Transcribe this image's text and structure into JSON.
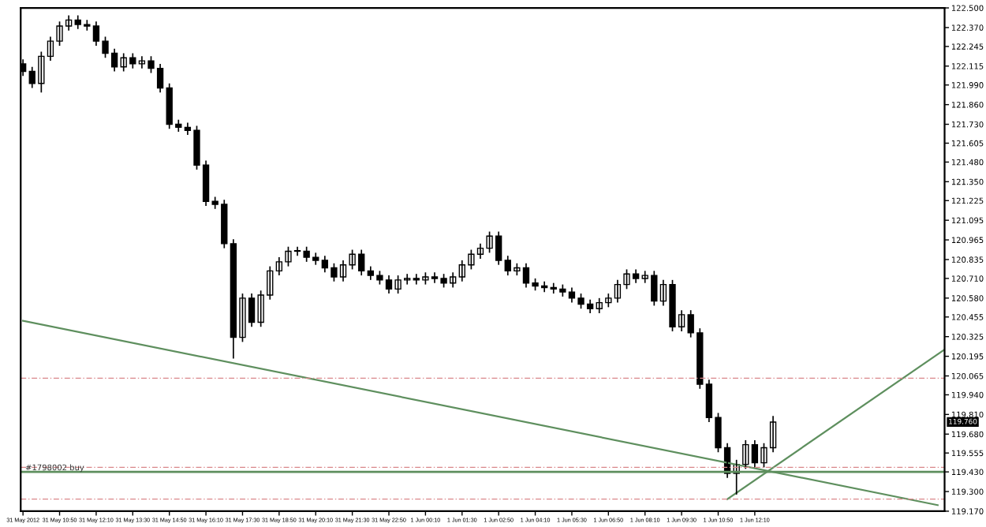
{
  "chart_data": {
    "type": "candlestick",
    "color": "#000000",
    "x": [
      "2012-05-31T09:30",
      "2012-05-31T09:50",
      "2012-05-31T10:10",
      "2012-05-31T10:30",
      "2012-05-31T10:50",
      "2012-05-31T11:10",
      "2012-05-31T11:30",
      "2012-05-31T11:50",
      "2012-05-31T12:10",
      "2012-05-31T12:30",
      "2012-05-31T12:50",
      "2012-05-31T13:10",
      "2012-05-31T13:30",
      "2012-05-31T13:50",
      "2012-05-31T14:10",
      "2012-05-31T14:30",
      "2012-05-31T14:50",
      "2012-05-31T15:10",
      "2012-05-31T15:30",
      "2012-05-31T15:50",
      "2012-05-31T16:10",
      "2012-05-31T16:30",
      "2012-05-31T16:50",
      "2012-05-31T17:10",
      "2012-05-31T17:30",
      "2012-05-31T17:50",
      "2012-05-31T18:10",
      "2012-05-31T18:30",
      "2012-05-31T18:50",
      "2012-05-31T19:10",
      "2012-05-31T19:30",
      "2012-05-31T19:50",
      "2012-05-31T20:10",
      "2012-05-31T20:30",
      "2012-05-31T20:50",
      "2012-05-31T21:10",
      "2012-05-31T21:30",
      "2012-05-31T21:50",
      "2012-05-31T22:10",
      "2012-05-31T22:30",
      "2012-05-31T22:50",
      "2012-05-31T23:10",
      "2012-05-31T23:30",
      "2012-05-31T23:50",
      "2012-06-01T00:10",
      "2012-06-01T00:30",
      "2012-06-01T00:50",
      "2012-06-01T01:10",
      "2012-06-01T01:30",
      "2012-06-01T01:50",
      "2012-06-01T02:10",
      "2012-06-01T02:30",
      "2012-06-01T02:50",
      "2012-06-01T03:10",
      "2012-06-01T03:30",
      "2012-06-01T03:50",
      "2012-06-01T04:10",
      "2012-06-01T04:30",
      "2012-06-01T04:50",
      "2012-06-01T05:10",
      "2012-06-01T05:30",
      "2012-06-01T05:50",
      "2012-06-01T06:10",
      "2012-06-01T06:30",
      "2012-06-01T06:50",
      "2012-06-01T07:10",
      "2012-06-01T07:30",
      "2012-06-01T07:50",
      "2012-06-01T08:10",
      "2012-06-01T08:30",
      "2012-06-01T08:50",
      "2012-06-01T09:10",
      "2012-06-01T09:30",
      "2012-06-01T09:50",
      "2012-06-01T10:10",
      "2012-06-01T10:30",
      "2012-06-01T10:50",
      "2012-06-01T11:10",
      "2012-06-01T11:30",
      "2012-06-01T11:50",
      "2012-06-01T12:10",
      "2012-06-01T12:30",
      "2012-06-01T12:50"
    ],
    "ohlc": [
      [
        122.13,
        122.16,
        122.05,
        122.08
      ],
      [
        122.08,
        122.11,
        121.97,
        122.0
      ],
      [
        122.0,
        122.21,
        121.94,
        122.18
      ],
      [
        122.18,
        122.31,
        122.15,
        122.28
      ],
      [
        122.28,
        122.41,
        122.25,
        122.38
      ],
      [
        122.38,
        122.45,
        122.35,
        122.42
      ],
      [
        122.42,
        122.45,
        122.36,
        122.39
      ],
      [
        122.39,
        122.42,
        122.35,
        122.38
      ],
      [
        122.38,
        122.41,
        122.25,
        122.28
      ],
      [
        122.28,
        122.31,
        122.17,
        122.2
      ],
      [
        122.2,
        122.23,
        122.08,
        122.11
      ],
      [
        122.11,
        122.2,
        122.08,
        122.17
      ],
      [
        122.17,
        122.2,
        122.1,
        122.13
      ],
      [
        122.13,
        122.18,
        122.1,
        122.15
      ],
      [
        122.15,
        122.18,
        122.07,
        122.1
      ],
      [
        122.1,
        122.13,
        121.94,
        121.97
      ],
      [
        121.97,
        122.0,
        121.7,
        121.73
      ],
      [
        121.73,
        121.76,
        121.68,
        121.71
      ],
      [
        121.71,
        121.74,
        121.66,
        121.69
      ],
      [
        121.69,
        121.72,
        121.43,
        121.46
      ],
      [
        121.46,
        121.49,
        121.19,
        121.22
      ],
      [
        121.22,
        121.25,
        121.17,
        121.2
      ],
      [
        121.2,
        121.23,
        120.91,
        120.94
      ],
      [
        120.94,
        120.97,
        120.18,
        120.32
      ],
      [
        120.32,
        120.61,
        120.29,
        120.58
      ],
      [
        120.58,
        120.61,
        120.39,
        120.42
      ],
      [
        120.42,
        120.63,
        120.39,
        120.6
      ],
      [
        120.6,
        120.79,
        120.57,
        120.76
      ],
      [
        120.76,
        120.85,
        120.73,
        120.82
      ],
      [
        120.82,
        120.92,
        120.79,
        120.89
      ],
      [
        120.89,
        120.92,
        120.86,
        120.89
      ],
      [
        120.89,
        120.92,
        120.82,
        120.85
      ],
      [
        120.85,
        120.88,
        120.8,
        120.83
      ],
      [
        120.83,
        120.86,
        120.75,
        120.78
      ],
      [
        120.78,
        120.81,
        120.69,
        120.72
      ],
      [
        120.72,
        120.83,
        120.69,
        120.8
      ],
      [
        120.8,
        120.9,
        120.77,
        120.87
      ],
      [
        120.87,
        120.9,
        120.73,
        120.76
      ],
      [
        120.76,
        120.79,
        120.7,
        120.73
      ],
      [
        120.73,
        120.76,
        120.67,
        120.7
      ],
      [
        120.7,
        120.73,
        120.61,
        120.64
      ],
      [
        120.64,
        120.73,
        120.61,
        120.7
      ],
      [
        120.7,
        120.74,
        120.67,
        120.71
      ],
      [
        120.71,
        120.74,
        120.67,
        120.7
      ],
      [
        120.7,
        120.75,
        120.67,
        120.72
      ],
      [
        120.72,
        120.75,
        120.68,
        120.71
      ],
      [
        120.71,
        120.74,
        120.65,
        120.68
      ],
      [
        120.68,
        120.75,
        120.65,
        120.72
      ],
      [
        120.72,
        120.83,
        120.69,
        120.8
      ],
      [
        120.8,
        120.9,
        120.77,
        120.87
      ],
      [
        120.87,
        120.94,
        120.84,
        120.91
      ],
      [
        120.91,
        121.02,
        120.88,
        120.99
      ],
      [
        120.99,
        121.02,
        120.8,
        120.83
      ],
      [
        120.83,
        120.86,
        120.73,
        120.76
      ],
      [
        120.76,
        120.81,
        120.73,
        120.78
      ],
      [
        120.78,
        120.81,
        120.65,
        120.68
      ],
      [
        120.68,
        120.71,
        120.63,
        120.66
      ],
      [
        120.66,
        120.69,
        120.62,
        120.65
      ],
      [
        120.65,
        120.68,
        120.61,
        120.64
      ],
      [
        120.64,
        120.67,
        120.59,
        120.62
      ],
      [
        120.62,
        120.65,
        120.55,
        120.58
      ],
      [
        120.58,
        120.61,
        120.51,
        120.54
      ],
      [
        120.54,
        120.57,
        120.48,
        120.51
      ],
      [
        120.51,
        120.58,
        120.48,
        120.55
      ],
      [
        120.55,
        120.61,
        120.52,
        120.58
      ],
      [
        120.58,
        120.7,
        120.55,
        120.67
      ],
      [
        120.67,
        120.77,
        120.64,
        120.74
      ],
      [
        120.74,
        120.77,
        120.68,
        120.71
      ],
      [
        120.71,
        120.76,
        120.68,
        120.73
      ],
      [
        120.73,
        120.76,
        120.53,
        120.56
      ],
      [
        120.56,
        120.7,
        120.53,
        120.67
      ],
      [
        120.67,
        120.7,
        120.36,
        120.39
      ],
      [
        120.39,
        120.5,
        120.36,
        120.47
      ],
      [
        120.47,
        120.5,
        120.32,
        120.35
      ],
      [
        120.35,
        120.38,
        119.98,
        120.01
      ],
      [
        120.01,
        120.04,
        119.76,
        119.79
      ],
      [
        119.79,
        119.82,
        119.56,
        119.59
      ],
      [
        119.59,
        119.62,
        119.39,
        119.42
      ],
      [
        119.42,
        119.51,
        119.28,
        119.48
      ],
      [
        119.48,
        119.64,
        119.45,
        119.61
      ],
      [
        119.61,
        119.64,
        119.46,
        119.49
      ],
      [
        119.49,
        119.62,
        119.46,
        119.59
      ],
      [
        119.59,
        119.8,
        119.56,
        119.76
      ]
    ],
    "series": [
      {
        "type": "line",
        "color": "#5e8f5e",
        "x": [
          "2012-05-31T09:30",
          "2012-06-01T18:50"
        ],
        "values": [
          120.43,
          119.21
        ]
      },
      {
        "type": "line",
        "color": "#5e8f5e",
        "x": [
          "2012-06-01T11:10",
          "2012-06-01T19:05"
        ],
        "values": [
          119.25,
          120.24
        ]
      }
    ],
    "ref_lines": [
      {
        "axis": "y",
        "value": 120.05,
        "color": "#d9868a",
        "line_style": "dashed"
      },
      {
        "axis": "y",
        "value": 119.46,
        "color": "#d9868a",
        "line_style": "dashed"
      },
      {
        "axis": "y",
        "value": 119.25,
        "color": "#d9868a",
        "line_style": "dashed"
      },
      {
        "axis": "y",
        "value": 119.43,
        "color": "#5e8f5e",
        "line_style": "solid",
        "label": "#1798002 buy"
      }
    ],
    "annotations": [
      "119.760"
    ],
    "xlim": [
      "2012-05-31T09:25",
      "2012-06-01T19:05"
    ],
    "xticks": [
      {
        "value": "2012-05-31T09:30",
        "label": "31 May 2012"
      },
      {
        "value": "2012-05-31T10:50",
        "label": "31 May 10:50"
      },
      {
        "value": "2012-05-31T12:10",
        "label": "31 May 12:10"
      },
      {
        "value": "2012-05-31T13:30",
        "label": "31 May 13:30"
      },
      {
        "value": "2012-05-31T14:50",
        "label": "31 May 14:50"
      },
      {
        "value": "2012-05-31T16:10",
        "label": "31 May 16:10"
      },
      {
        "value": "2012-05-31T17:30",
        "label": "31 May 17:30"
      },
      {
        "value": "2012-05-31T18:50",
        "label": "31 May 18:50"
      },
      {
        "value": "2012-05-31T20:10",
        "label": "31 May 20:10"
      },
      {
        "value": "2012-05-31T21:30",
        "label": "31 May 21:30"
      },
      {
        "value": "2012-05-31T22:50",
        "label": "31 May 22:50"
      },
      {
        "value": "2012-06-01T00:10",
        "label": "1 Jun 00:10"
      },
      {
        "value": "2012-06-01T01:30",
        "label": "1 Jun 01:30"
      },
      {
        "value": "2012-06-01T02:50",
        "label": "1 Jun 02:50"
      },
      {
        "value": "2012-06-01T04:10",
        "label": "1 Jun 04:10"
      },
      {
        "value": "2012-06-01T05:30",
        "label": "1 Jun 05:30"
      },
      {
        "value": "2012-06-01T06:50",
        "label": "1 Jun 06:50"
      },
      {
        "value": "2012-06-01T08:10",
        "label": "1 Jun 08:10"
      },
      {
        "value": "2012-06-01T09:30",
        "label": "1 Jun 09:30"
      },
      {
        "value": "2012-06-01T10:50",
        "label": "1 Jun 10:50"
      },
      {
        "value": "2012-06-01T12:10",
        "label": "1 Jun 12:10"
      }
    ],
    "ylim": [
      119.17,
      122.5
    ],
    "yticks": [
      {
        "value": 122.5,
        "label": "122.500"
      },
      {
        "value": 122.37,
        "label": "122.370"
      },
      {
        "value": 122.245,
        "label": "122.245"
      },
      {
        "value": 122.115,
        "label": "122.115"
      },
      {
        "value": 121.99,
        "label": "121.990"
      },
      {
        "value": 121.86,
        "label": "121.860"
      },
      {
        "value": 121.73,
        "label": "121.730"
      },
      {
        "value": 121.605,
        "label": "121.605"
      },
      {
        "value": 121.48,
        "label": "121.480"
      },
      {
        "value": 121.35,
        "label": "121.350"
      },
      {
        "value": 121.225,
        "label": "121.225"
      },
      {
        "value": 121.095,
        "label": "121.095"
      },
      {
        "value": 120.965,
        "label": "120.965"
      },
      {
        "value": 120.835,
        "label": "120.835"
      },
      {
        "value": 120.71,
        "label": "120.710"
      },
      {
        "value": 120.58,
        "label": "120.580"
      },
      {
        "value": 120.455,
        "label": "120.455"
      },
      {
        "value": 120.325,
        "label": "120.325"
      },
      {
        "value": 120.195,
        "label": "120.195"
      },
      {
        "value": 120.065,
        "label": "120.065"
      },
      {
        "value": 119.94,
        "label": "119.940"
      },
      {
        "value": 119.81,
        "label": "119.810"
      },
      {
        "value": 119.68,
        "label": "119.680"
      },
      {
        "value": 119.555,
        "label": "119.555"
      },
      {
        "value": 119.43,
        "label": "119.430"
      },
      {
        "value": 119.3,
        "label": "119.300"
      },
      {
        "value": 119.17,
        "label": "119.170"
      }
    ],
    "grid": false
  }
}
